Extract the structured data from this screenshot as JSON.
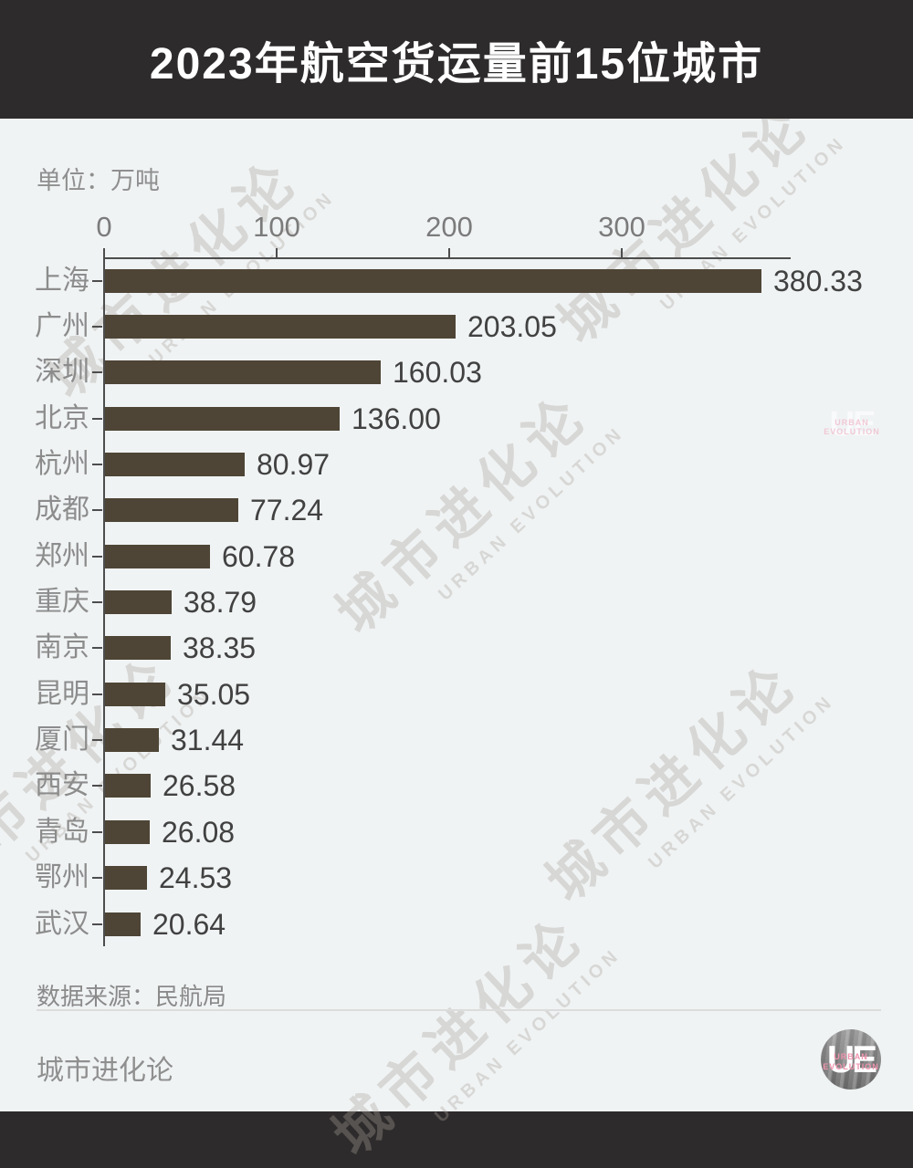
{
  "header": {
    "title": "2023年航空货运量前15位城市"
  },
  "unit_label": "单位：万吨",
  "chart_data": {
    "type": "bar",
    "orientation": "horizontal",
    "title": "2023年航空货运量前15位城市",
    "unit": "万吨",
    "categories": [
      "上海",
      "广州",
      "深圳",
      "北京",
      "杭州",
      "成都",
      "郑州",
      "重庆",
      "南京",
      "昆明",
      "厦门",
      "西安",
      "青岛",
      "鄂州",
      "武汉"
    ],
    "values": [
      380.33,
      203.05,
      160.03,
      136.0,
      80.97,
      77.24,
      60.78,
      38.79,
      38.35,
      35.05,
      31.44,
      26.58,
      26.08,
      24.53,
      20.64
    ],
    "value_labels": [
      "380.33",
      "203.05",
      "160.03",
      "136.00",
      "80.97",
      "77.24",
      "60.78",
      "38.79",
      "38.35",
      "35.05",
      "31.44",
      "26.58",
      "26.08",
      "24.53",
      "20.64"
    ],
    "x_ticks": [
      0,
      100,
      200,
      300
    ],
    "xlim": [
      0,
      398
    ],
    "grid": false,
    "legend": false,
    "bar_color": "#4e4536",
    "value_label_position": "outside-right"
  },
  "footer": {
    "source": "数据来源：民航局",
    "brand": "城市进化论",
    "logo": {
      "initials": "UE",
      "line1": "URBAN",
      "line2": "EVOLUTION"
    }
  },
  "watermark": {
    "cn": "城市进化论",
    "en": "URBAN EVOLUTION"
  },
  "colors": {
    "header_bg": "#2e2b2c",
    "page_bg": "#f0f3f4",
    "bar": "#4e4536",
    "axis": "#4d4d4d",
    "category_text": "#8c8c8c",
    "value_text": "#414141",
    "logo_accent": "#ef93ad"
  }
}
